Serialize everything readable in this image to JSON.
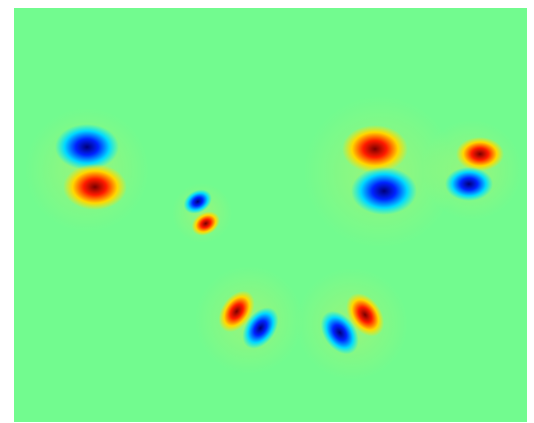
{
  "figure": {
    "kind": "field-map",
    "colormap": "jet",
    "background_color": "#72fb8f",
    "axes_visible": false,
    "colorbar_visible": false
  },
  "colors": {
    "positive_core": "#7a0000",
    "positive_mid": "#ff1a00",
    "positive_edge": "#ffd800",
    "negative_core": "#00007a",
    "negative_mid": "#0022ff",
    "negative_edge": "#00d8ff"
  },
  "features": [
    {
      "name": "dipole-1",
      "top_lobe": "negative",
      "bottom_lobe": "positive",
      "orientation": "vertical"
    },
    {
      "name": "dipole-2",
      "top_lobe": "negative",
      "bottom_lobe": "positive",
      "orientation": "diagonal"
    },
    {
      "name": "dipole-3",
      "top_lobe": "positive",
      "bottom_lobe": "negative",
      "orientation": "vertical"
    },
    {
      "name": "dipole-4",
      "top_lobe": "positive",
      "bottom_lobe": "negative",
      "orientation": "vertical"
    },
    {
      "name": "dipole-5",
      "top_lobe": "positive",
      "bottom_lobe": "negative",
      "orientation": "diagonal"
    },
    {
      "name": "dipole-6",
      "top_lobe": "positive",
      "bottom_lobe": "negative",
      "orientation": "diagonal"
    }
  ]
}
